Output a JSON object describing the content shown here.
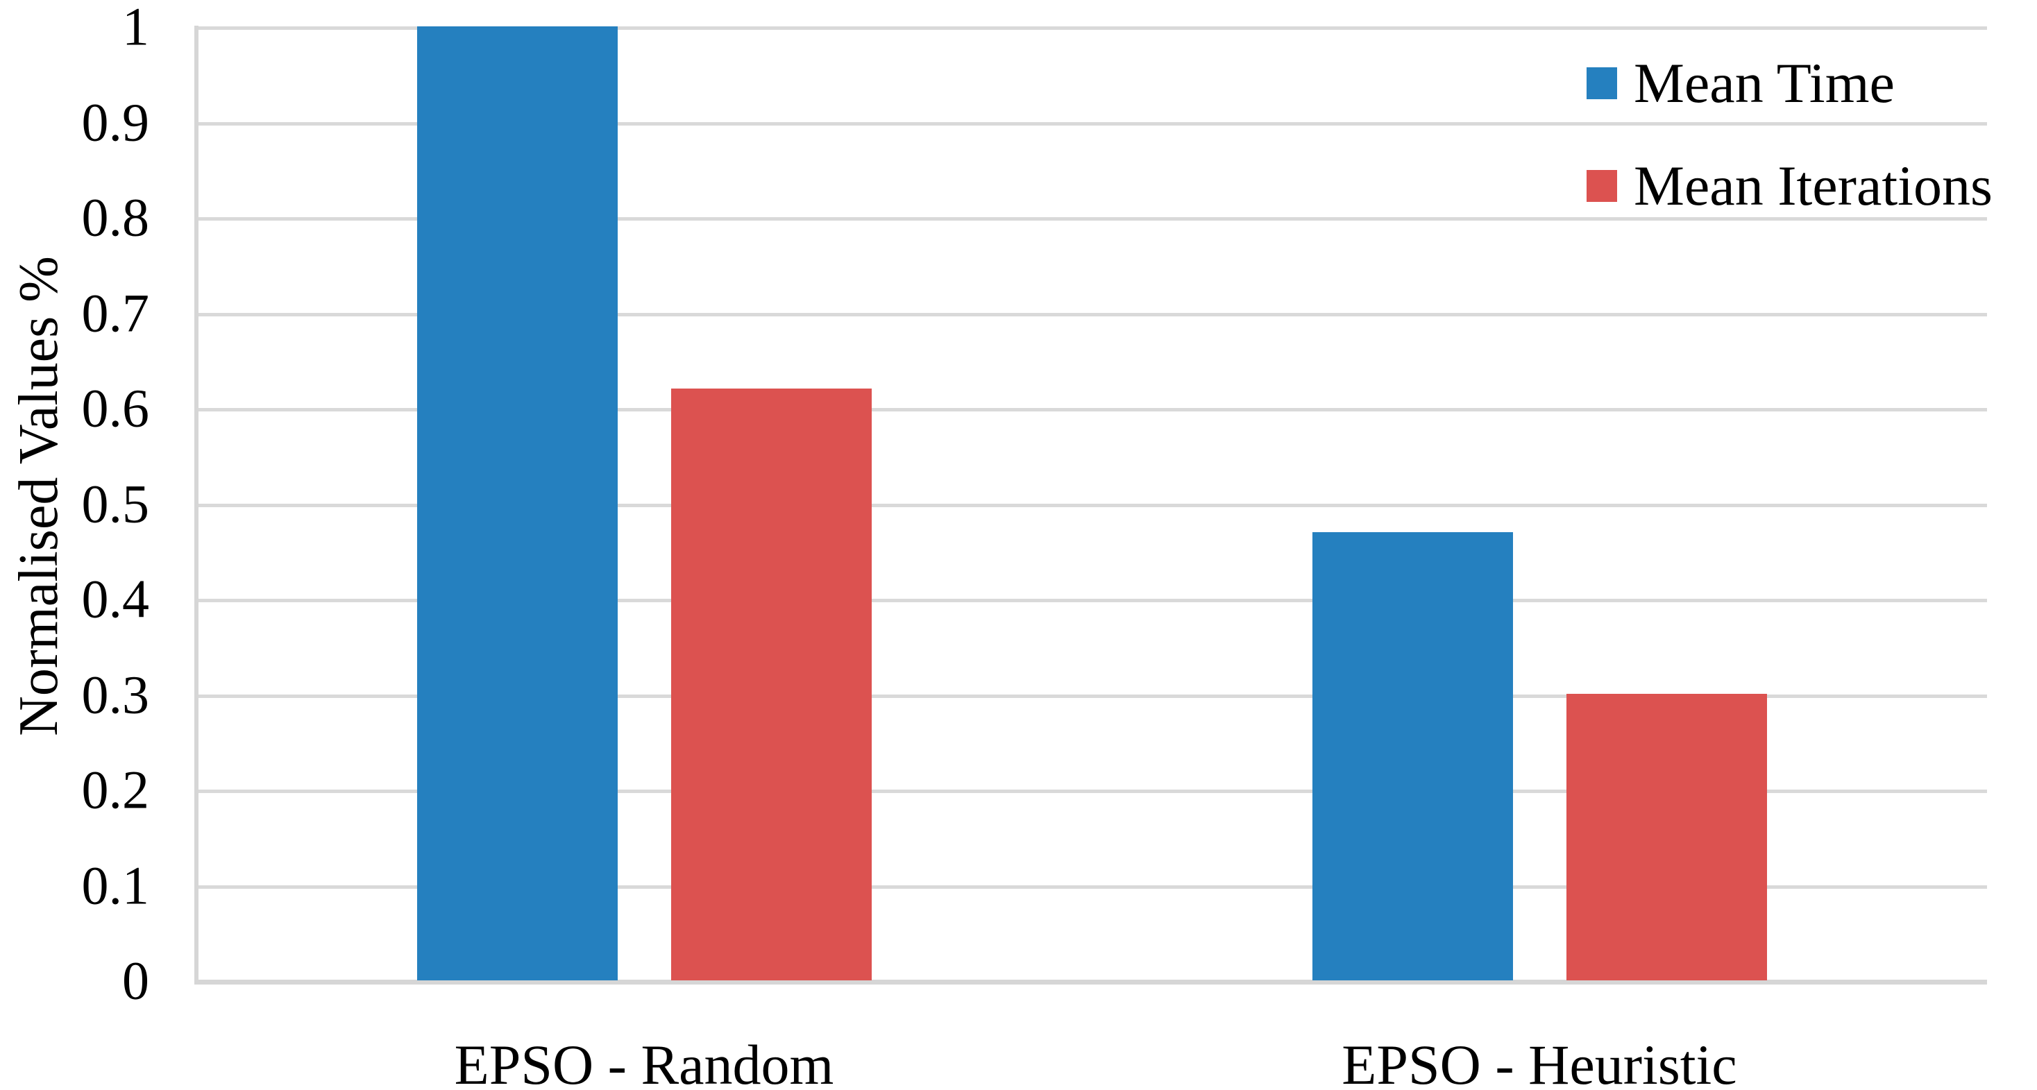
{
  "chart_data": {
    "type": "bar",
    "title": "",
    "categories": [
      "EPSO - Random",
      "EPSO - Heuristic"
    ],
    "series": [
      {
        "name": "Mean Time",
        "color": "#2580BF",
        "values": [
          1.0,
          0.47
        ]
      },
      {
        "name": "Mean Iterations",
        "color": "#DC5250",
        "values": [
          0.62,
          0.3
        ]
      }
    ],
    "xlabel": "",
    "ylabel": "Normalised Values %",
    "ylim": [
      0,
      1
    ],
    "yticks": [
      0,
      0.1,
      0.2,
      0.3,
      0.4,
      0.5,
      0.6,
      0.7,
      0.8,
      0.9,
      1
    ],
    "ytick_labels": [
      "0",
      "0.1",
      "0.2",
      "0.3",
      "0.4",
      "0.5",
      "0.6",
      "0.7",
      "0.8",
      "0.9",
      "1"
    ],
    "grid": true,
    "gridline_color": "#d9d9d9",
    "axis_color": "#d6d6d6",
    "legend_position": "top-right"
  }
}
